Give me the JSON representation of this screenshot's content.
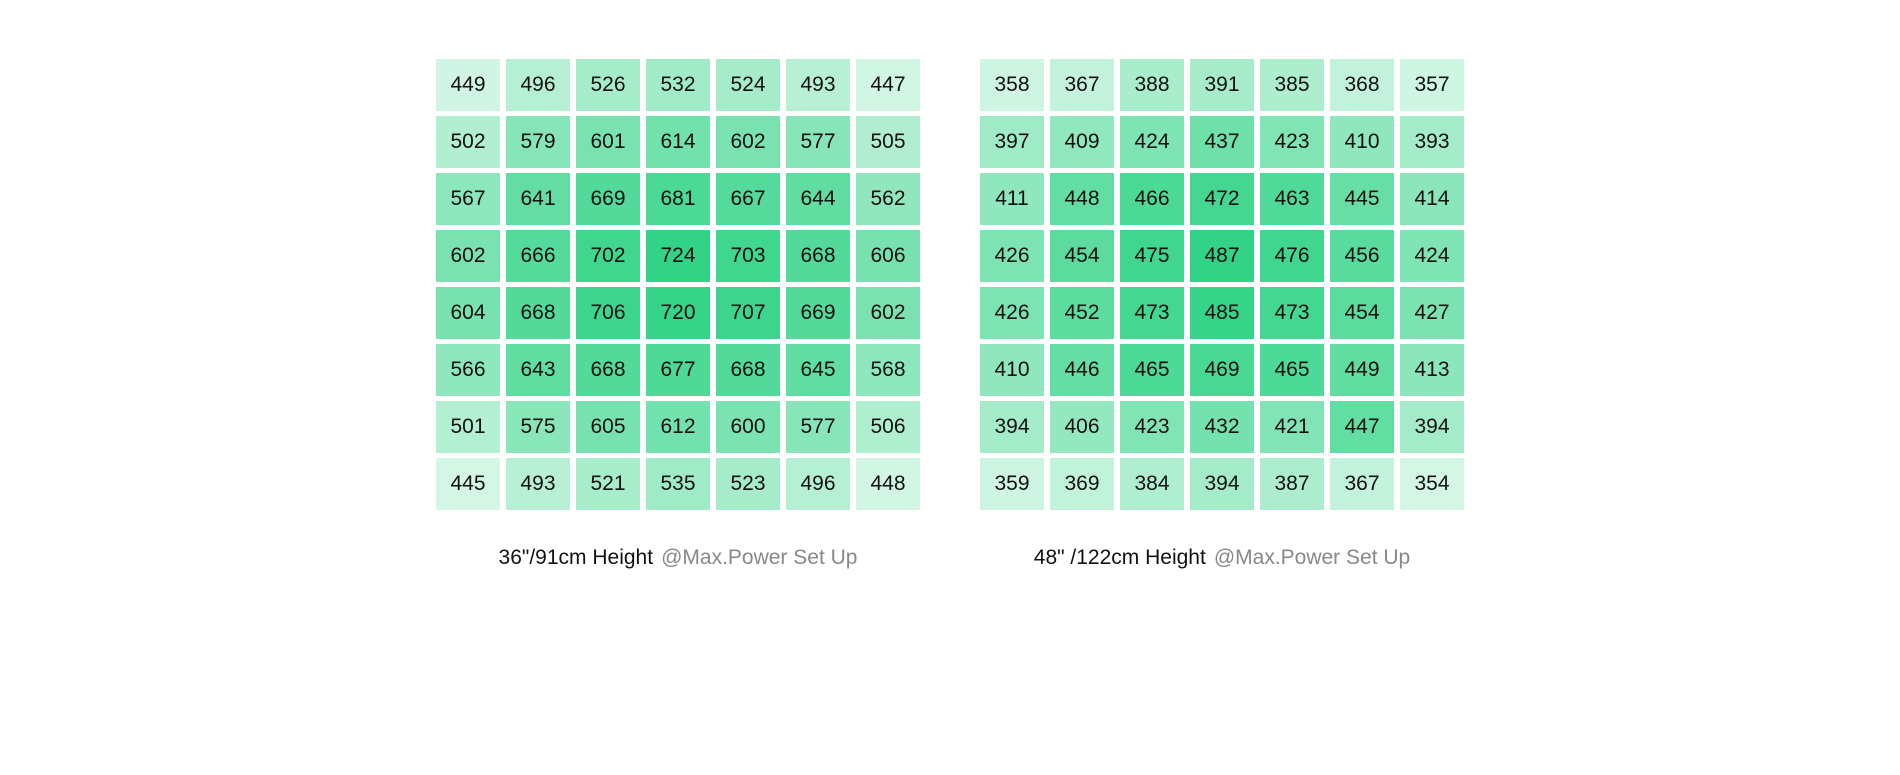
{
  "grids": [
    {
      "rows": [
        [
          449,
          496,
          526,
          532,
          524,
          493,
          447
        ],
        [
          502,
          579,
          601,
          614,
          602,
          577,
          505
        ],
        [
          567,
          641,
          669,
          681,
          667,
          644,
          562
        ],
        [
          602,
          666,
          702,
          724,
          703,
          668,
          606
        ],
        [
          604,
          668,
          706,
          720,
          707,
          669,
          602
        ],
        [
          566,
          643,
          668,
          677,
          668,
          645,
          568
        ],
        [
          501,
          575,
          605,
          612,
          600,
          577,
          506
        ],
        [
          445,
          493,
          521,
          535,
          523,
          496,
          448
        ]
      ],
      "caption": "36\"/91cm Height",
      "note": "@Max.Power Set Up"
    },
    {
      "rows": [
        [
          358,
          367,
          388,
          391,
          385,
          368,
          357
        ],
        [
          397,
          409,
          424,
          437,
          423,
          410,
          393
        ],
        [
          411,
          448,
          466,
          472,
          463,
          445,
          414
        ],
        [
          426,
          454,
          475,
          487,
          476,
          456,
          424
        ],
        [
          426,
          452,
          473,
          485,
          473,
          454,
          427
        ],
        [
          410,
          446,
          465,
          469,
          465,
          449,
          413
        ],
        [
          394,
          406,
          423,
          432,
          421,
          447,
          394
        ],
        [
          359,
          369,
          384,
          394,
          387,
          367,
          354
        ]
      ],
      "caption": "48\" /122cm Height",
      "note": "@Max.Power Set Up"
    }
  ]
}
